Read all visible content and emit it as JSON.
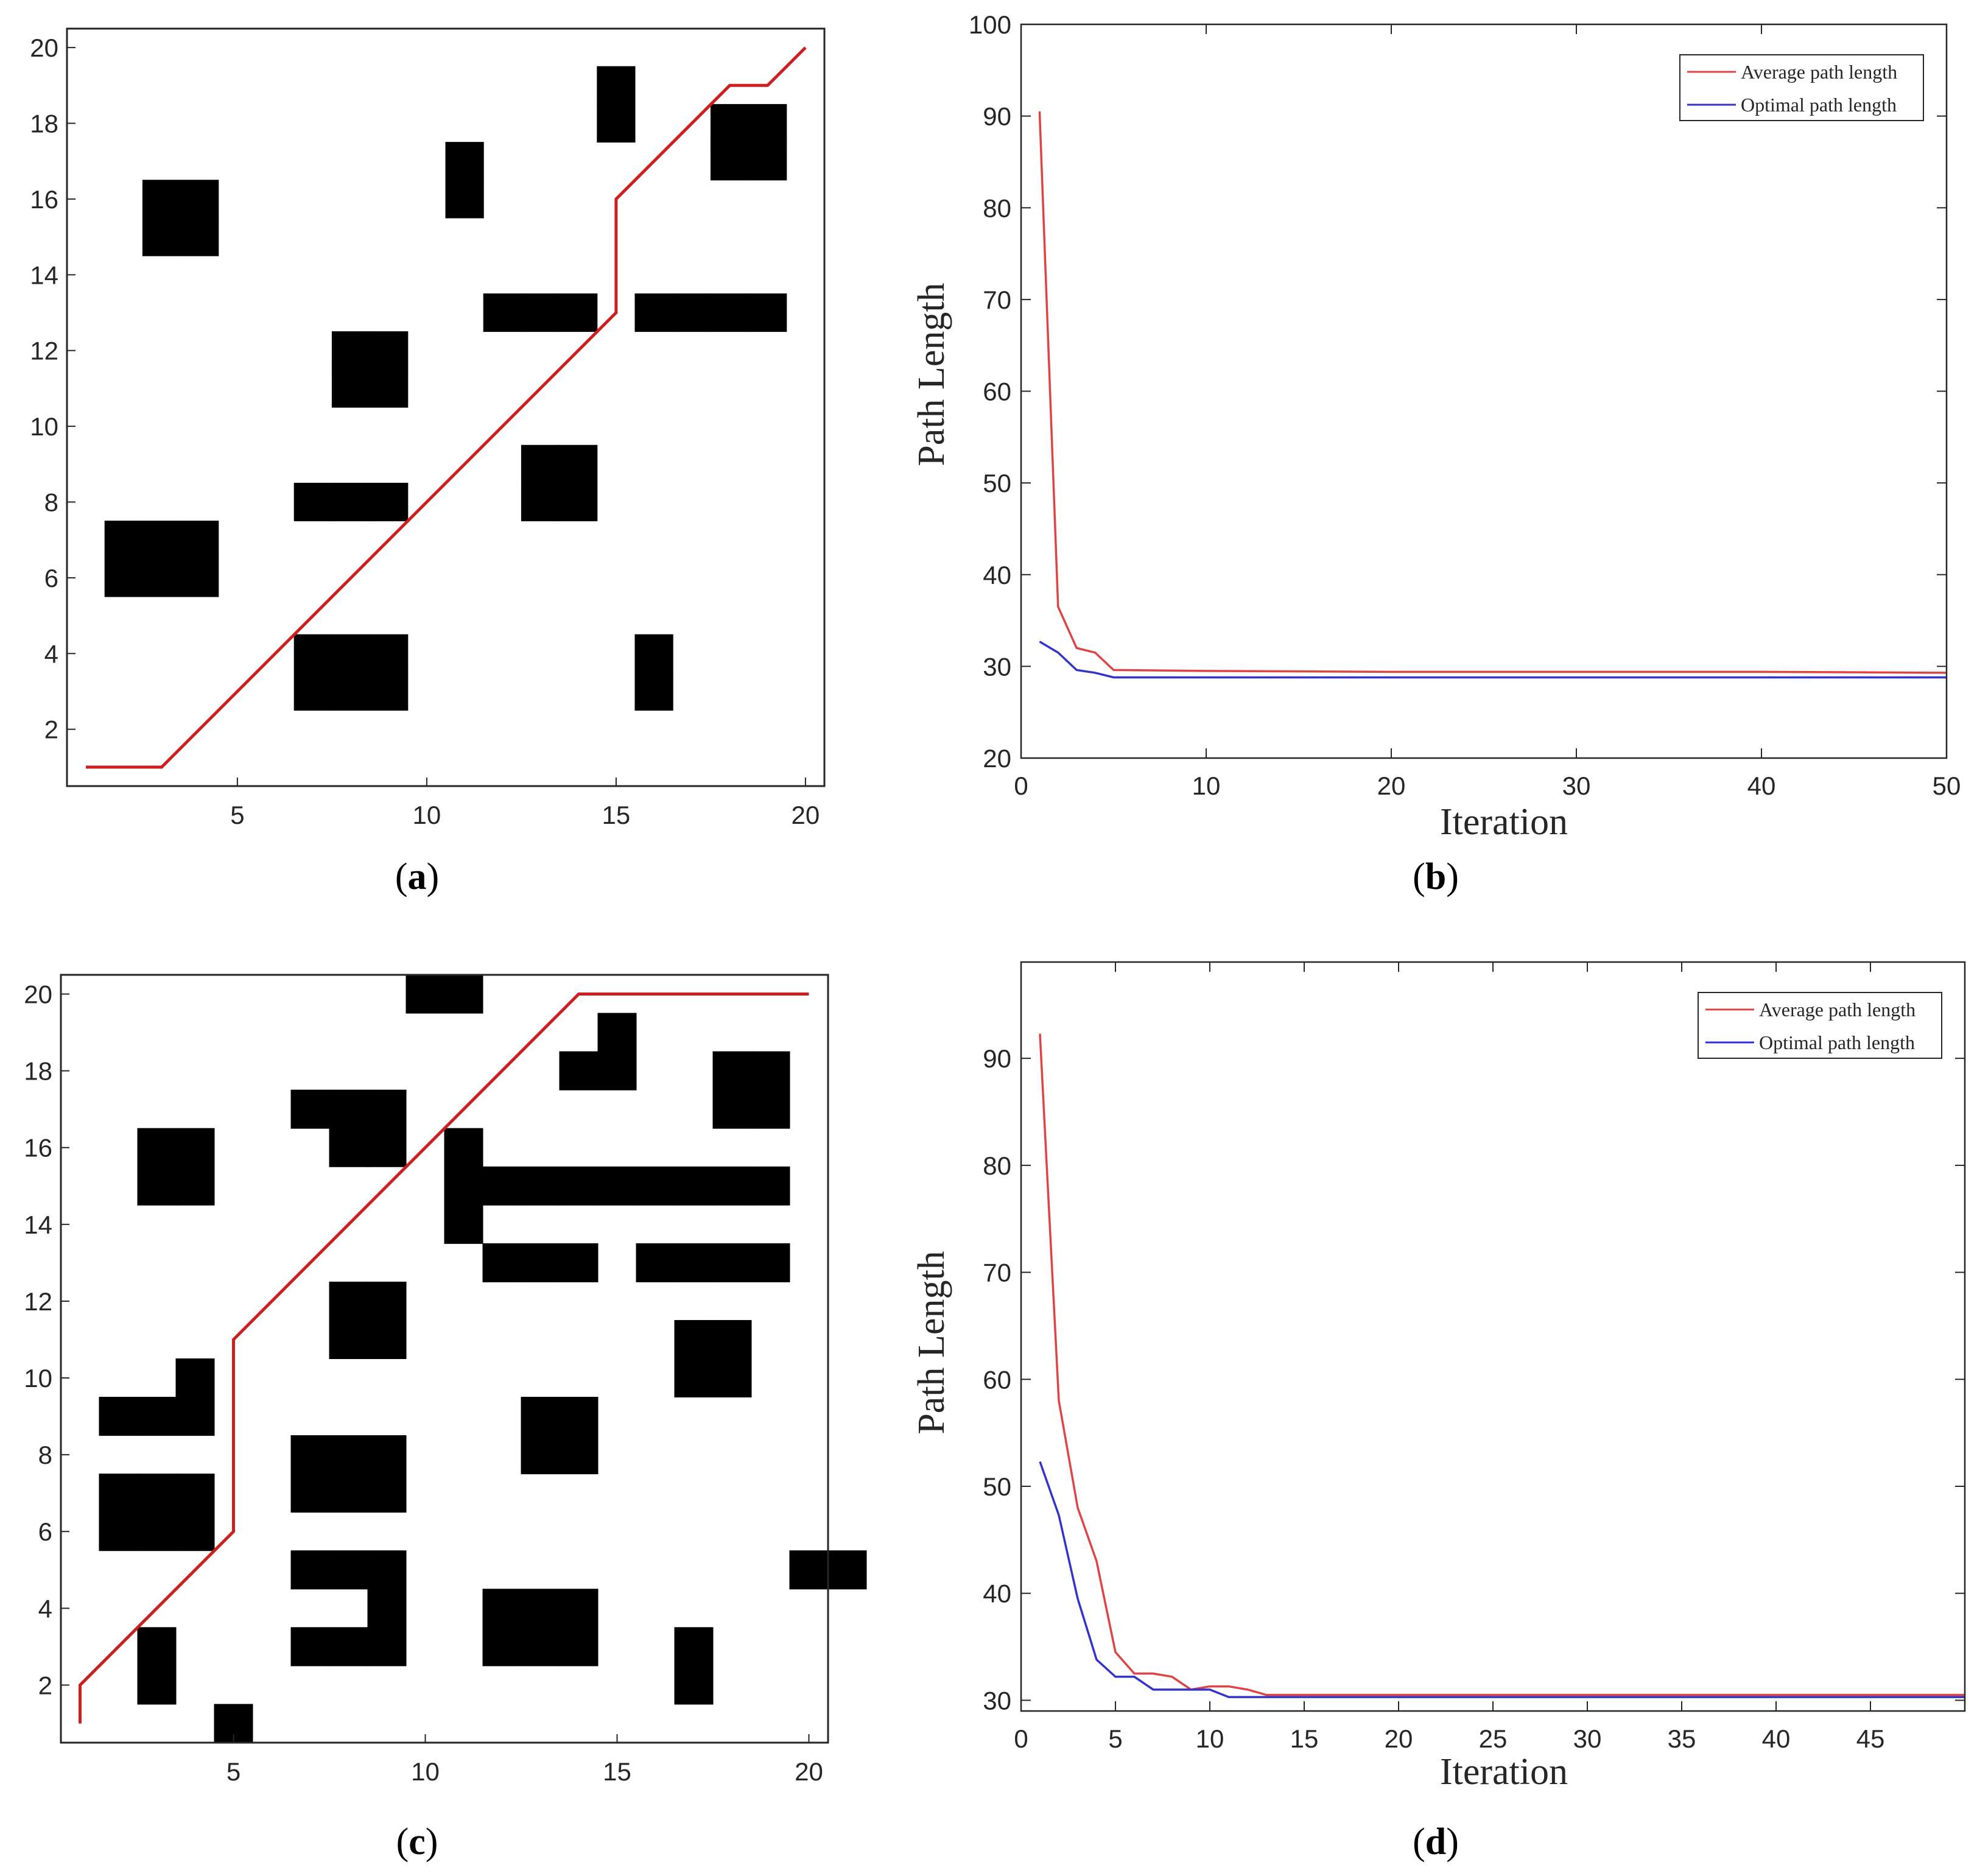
{
  "chart_data": [
    {
      "id": "a",
      "type": "grid_path",
      "caption": "a",
      "xlim": [
        0.5,
        20.5
      ],
      "ylim": [
        0.5,
        20.5
      ],
      "xticks": [
        5,
        10,
        15,
        20
      ],
      "yticks": [
        2,
        4,
        6,
        8,
        10,
        12,
        14,
        16,
        18,
        20
      ],
      "path_color": "#cc1f1f",
      "obstacle_color": "#000000",
      "obstacles": [
        [
          2,
          7
        ],
        [
          3,
          7
        ],
        [
          4,
          7
        ],
        [
          2,
          6
        ],
        [
          3,
          6
        ],
        [
          4,
          6
        ],
        [
          3,
          16
        ],
        [
          4,
          16
        ],
        [
          3,
          15
        ],
        [
          4,
          15
        ],
        [
          7,
          8
        ],
        [
          8,
          8
        ],
        [
          9,
          8
        ],
        [
          7,
          4
        ],
        [
          8,
          4
        ],
        [
          9,
          4
        ],
        [
          7,
          3
        ],
        [
          8,
          3
        ],
        [
          9,
          3
        ],
        [
          8,
          12
        ],
        [
          9,
          12
        ],
        [
          8,
          11
        ],
        [
          9,
          11
        ],
        [
          11,
          17
        ],
        [
          11,
          16
        ],
        [
          12,
          13
        ],
        [
          13,
          13
        ],
        [
          14,
          13
        ],
        [
          13,
          9
        ],
        [
          14,
          9
        ],
        [
          13,
          8
        ],
        [
          14,
          8
        ],
        [
          15,
          19
        ],
        [
          15,
          18
        ],
        [
          16,
          13
        ],
        [
          17,
          13
        ],
        [
          18,
          13
        ],
        [
          19,
          13
        ],
        [
          16,
          4
        ],
        [
          16,
          3
        ],
        [
          18,
          18
        ],
        [
          19,
          18
        ],
        [
          18,
          17
        ],
        [
          19,
          17
        ]
      ],
      "path": [
        [
          1,
          1
        ],
        [
          3,
          1
        ],
        [
          15,
          13
        ],
        [
          15,
          16
        ],
        [
          18,
          19
        ],
        [
          19,
          19
        ],
        [
          20,
          20
        ]
      ]
    },
    {
      "id": "b",
      "type": "line",
      "caption": "b",
      "xlabel": "Iteration",
      "ylabel": "Path Length",
      "xlim": [
        0,
        50
      ],
      "ylim": [
        20,
        100
      ],
      "xticks": [
        0,
        10,
        20,
        30,
        40,
        50
      ],
      "yticks": [
        20,
        30,
        40,
        50,
        60,
        70,
        80,
        90,
        100
      ],
      "legend": "top-right",
      "series": [
        {
          "name": "Average path length",
          "color": "#dd4444",
          "x": [
            1,
            2,
            3,
            4,
            5,
            10,
            20,
            30,
            40,
            50
          ],
          "y": [
            90.5,
            36.5,
            32,
            31.5,
            29.6,
            29.5,
            29.4,
            29.4,
            29.4,
            29.3
          ]
        },
        {
          "name": "Optimal path length",
          "color": "#3333cc",
          "x": [
            1,
            2,
            3,
            4,
            5,
            50
          ],
          "y": [
            32.7,
            31.5,
            29.6,
            29.3,
            28.8,
            28.8
          ]
        }
      ]
    },
    {
      "id": "c",
      "type": "grid_path",
      "caption": "c",
      "xlim": [
        0.5,
        20.5
      ],
      "ylim": [
        0.5,
        20.5
      ],
      "xticks": [
        5,
        10,
        15,
        20
      ],
      "yticks": [
        2,
        4,
        6,
        8,
        10,
        12,
        14,
        16,
        18,
        20
      ],
      "path_color": "#cc1f1f",
      "obstacle_color": "#000000",
      "obstacles": [
        [
          10,
          20
        ],
        [
          11,
          20
        ],
        [
          15,
          19
        ],
        [
          14,
          18
        ],
        [
          15,
          18
        ],
        [
          7,
          17
        ],
        [
          8,
          17
        ],
        [
          9,
          17
        ],
        [
          8,
          16
        ],
        [
          9,
          16
        ],
        [
          18,
          18
        ],
        [
          19,
          18
        ],
        [
          18,
          17
        ],
        [
          19,
          17
        ],
        [
          3,
          16
        ],
        [
          4,
          16
        ],
        [
          3,
          15
        ],
        [
          4,
          15
        ],
        [
          11,
          16
        ],
        [
          11,
          15
        ],
        [
          12,
          15
        ],
        [
          13,
          15
        ],
        [
          14,
          15
        ],
        [
          15,
          15
        ],
        [
          16,
          15
        ],
        [
          17,
          15
        ],
        [
          18,
          15
        ],
        [
          19,
          15
        ],
        [
          11,
          14
        ],
        [
          12,
          13
        ],
        [
          13,
          13
        ],
        [
          14,
          13
        ],
        [
          16,
          13
        ],
        [
          17,
          13
        ],
        [
          18,
          13
        ],
        [
          19,
          13
        ],
        [
          8,
          12
        ],
        [
          9,
          12
        ],
        [
          8,
          11
        ],
        [
          9,
          11
        ],
        [
          17,
          11
        ],
        [
          18,
          11
        ],
        [
          17,
          10
        ],
        [
          18,
          10
        ],
        [
          4,
          10
        ],
        [
          2,
          9
        ],
        [
          3,
          9
        ],
        [
          4,
          9
        ],
        [
          13,
          9
        ],
        [
          14,
          9
        ],
        [
          13,
          8
        ],
        [
          14,
          8
        ],
        [
          7,
          8
        ],
        [
          8,
          8
        ],
        [
          9,
          8
        ],
        [
          7,
          7
        ],
        [
          8,
          7
        ],
        [
          9,
          7
        ],
        [
          2,
          7
        ],
        [
          3,
          7
        ],
        [
          4,
          7
        ],
        [
          2,
          6
        ],
        [
          3,
          6
        ],
        [
          4,
          6
        ],
        [
          20,
          5
        ],
        [
          21,
          5
        ],
        [
          7,
          5
        ],
        [
          8,
          5
        ],
        [
          9,
          5
        ],
        [
          9,
          4
        ],
        [
          7,
          3
        ],
        [
          8,
          3
        ],
        [
          9,
          3
        ],
        [
          12,
          4
        ],
        [
          13,
          4
        ],
        [
          14,
          4
        ],
        [
          12,
          3
        ],
        [
          13,
          3
        ],
        [
          14,
          3
        ],
        [
          3,
          3
        ],
        [
          3,
          2
        ],
        [
          17,
          3
        ],
        [
          17,
          2
        ],
        [
          5,
          1
        ]
      ],
      "path": [
        [
          1,
          1
        ],
        [
          1,
          2
        ],
        [
          5,
          6
        ],
        [
          5,
          11
        ],
        [
          14,
          20
        ],
        [
          20,
          20
        ]
      ]
    },
    {
      "id": "d",
      "type": "line",
      "caption": "d",
      "xlabel": "Iteration",
      "ylabel": "Path Length",
      "xlim": [
        0,
        50
      ],
      "ylim": [
        29,
        99
      ],
      "xticks": [
        0,
        5,
        10,
        15,
        20,
        25,
        30,
        35,
        40,
        45
      ],
      "yticks": [
        30,
        40,
        50,
        60,
        70,
        80,
        90
      ],
      "legend": "top-right",
      "series": [
        {
          "name": "Average path length",
          "color": "#dd4444",
          "x": [
            1,
            2,
            3,
            4,
            5,
            6,
            7,
            8,
            9,
            10,
            11,
            12,
            13,
            14,
            20,
            30,
            40,
            50
          ],
          "y": [
            92.3,
            58,
            48,
            43,
            34.5,
            32.5,
            32.5,
            32.2,
            31,
            31.3,
            31.3,
            31,
            30.5,
            30.5,
            30.5,
            30.5,
            30.5,
            30.5
          ]
        },
        {
          "name": "Optimal path length",
          "color": "#3333cc",
          "x": [
            1,
            2,
            3,
            4,
            5,
            6,
            7,
            8,
            9,
            10,
            11,
            12,
            13,
            50
          ],
          "y": [
            52.3,
            47.3,
            39.5,
            33.8,
            32.2,
            32.2,
            31,
            31,
            31,
            31,
            30.3,
            30.3,
            30.3,
            30.3
          ]
        }
      ]
    }
  ]
}
